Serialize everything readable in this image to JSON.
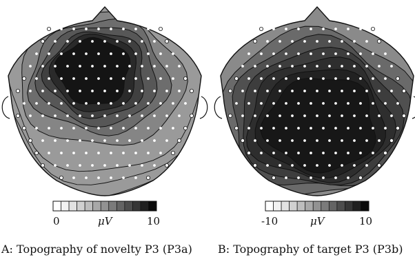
{
  "panels": [
    {
      "id": "a",
      "caption": "A: Topography of novelty P3 (P3a)",
      "scale": {
        "min_label": "0",
        "unit_label": "μV",
        "max_label": "10"
      },
      "levels": [
        {
          "fill": "#9a9a9a"
        },
        {
          "fill": "#858585"
        },
        {
          "fill": "#6d6d6d"
        },
        {
          "fill": "#575757"
        },
        {
          "fill": "#404040"
        },
        {
          "fill": "#2a2a2a"
        },
        {
          "fill": "#141414"
        }
      ]
    },
    {
      "id": "b",
      "caption": "B: Topography of target P3 (P3b)",
      "scale": {
        "min_label": "-10",
        "unit_label": "μV",
        "max_label": "10"
      },
      "levels": [
        {
          "fill": "#8a8a8a"
        },
        {
          "fill": "#6a6a6a"
        },
        {
          "fill": "#505050"
        },
        {
          "fill": "#3d3d3d"
        },
        {
          "fill": "#2e2e2e"
        },
        {
          "fill": "#222222"
        },
        {
          "fill": "#171717"
        }
      ]
    }
  ],
  "colorbar_steps": [
    "#ffffff",
    "#f2f2f2",
    "#e2e2e2",
    "#d0d0d0",
    "#bdbdbd",
    "#a8a8a8",
    "#929292",
    "#7b7b7b",
    "#646464",
    "#4d4d4d",
    "#363636",
    "#202020",
    "#0a0a0a"
  ]
}
